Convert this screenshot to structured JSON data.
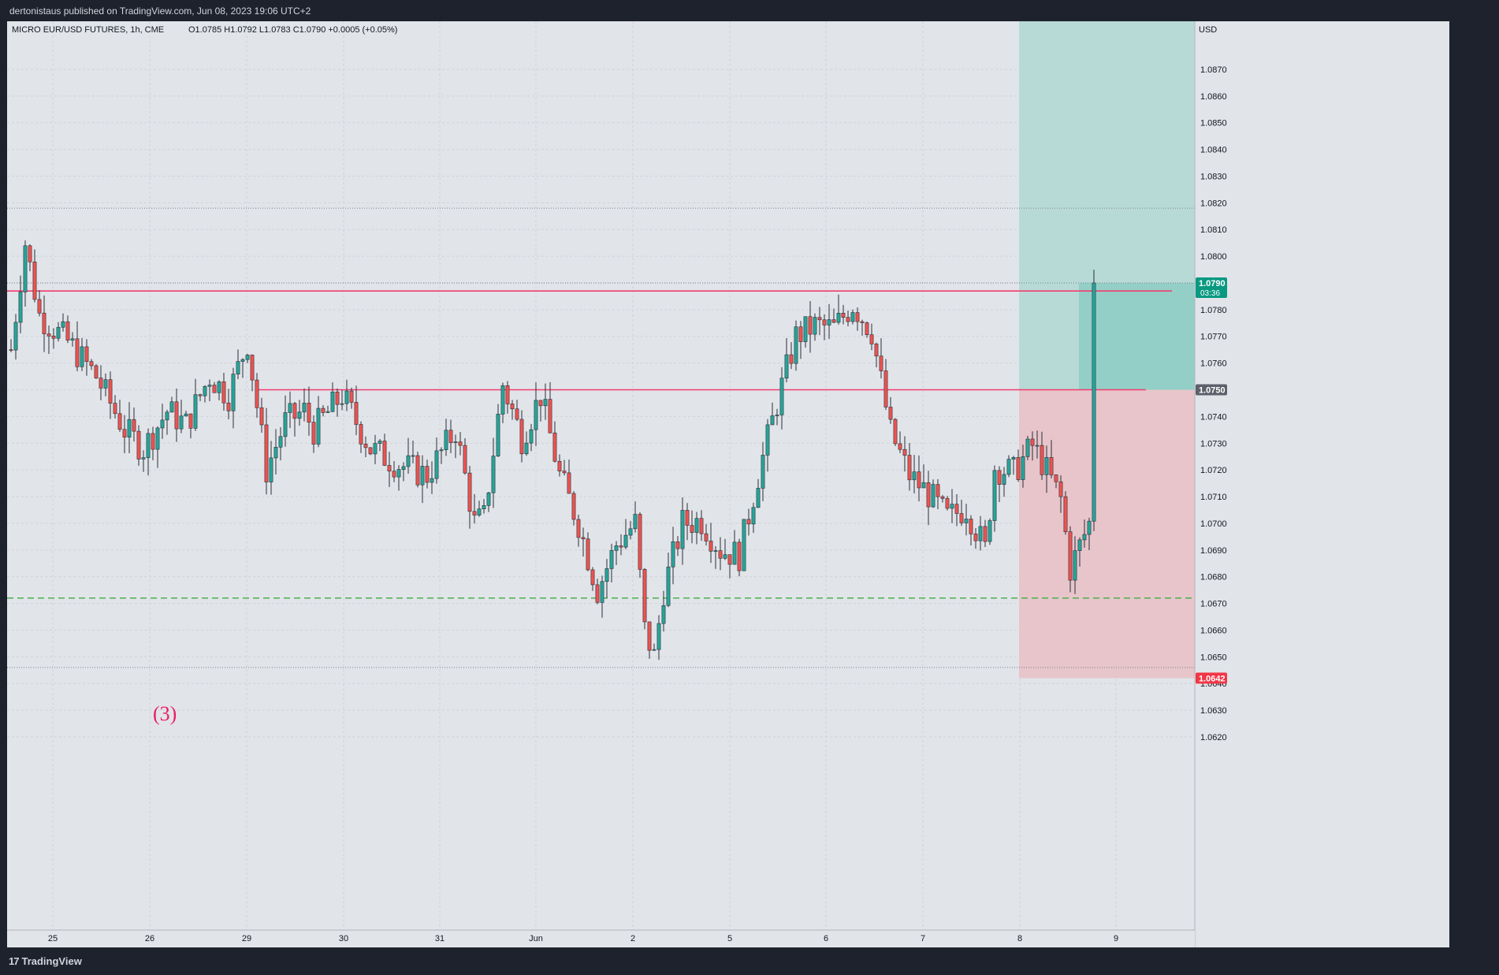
{
  "publisher_line": "dertonistaus published on TradingView.com, Jun 08, 2023 19:06 UTC+2",
  "footer": {
    "logo_mark": "17",
    "logo_text": "TradingView"
  },
  "colors": {
    "background": "#e1e4e8",
    "up": "#26a69a",
    "down": "#ef5350",
    "level_line": "#f23c6e",
    "support_line": "#4caf50",
    "profit_zone": "#b5d9d6",
    "loss_zone": "#e7c3c8",
    "annotation": "#e91e63"
  },
  "chart_data": {
    "type": "candlestick",
    "title": "MICRO EUR/USD FUTURES, 1h, CME",
    "ohlc_header": {
      "o_label": "O",
      "o": "1.0785",
      "h_label": "H",
      "h": "1.0792",
      "l_label": "L",
      "l": "1.0783",
      "c_label": "C",
      "c": "1.0790",
      "change": "+0.0005 (+0.05%)"
    },
    "currency": "USD",
    "ylim": [
      1.0612,
      1.0888
    ],
    "y_ticks": [
      "1.0870",
      "1.0860",
      "1.0850",
      "1.0840",
      "1.0830",
      "1.0820",
      "1.0810",
      "1.0800",
      "1.0790",
      "1.0780",
      "1.0770",
      "1.0760",
      "1.0750",
      "1.0740",
      "1.0730",
      "1.0720",
      "1.0710",
      "1.0700",
      "1.0690",
      "1.0680",
      "1.0670",
      "1.0660",
      "1.0650",
      "1.0640",
      "1.0630",
      "1.0620"
    ],
    "x_ticks": [
      "25",
      "26",
      "29",
      "30",
      "31",
      "Jun",
      "2",
      "5",
      "6",
      "7",
      "8",
      "9"
    ],
    "last_price": "1.0790",
    "countdown": "03:36",
    "horizontal_levels": [
      {
        "price": 1.0787,
        "style": "solid",
        "color": "#f23c6e"
      },
      {
        "price": 1.075,
        "style": "solid",
        "color": "#f23c6e"
      },
      {
        "price": 1.0672,
        "style": "dashed",
        "color": "#4caf50"
      }
    ],
    "dotted_levels": [
      1.0818,
      1.079,
      1.0646
    ],
    "position": {
      "type": "long",
      "entry": "1.0750",
      "stop": "1.0642",
      "target_top_offscreen": true
    },
    "annotation": "(3)",
    "candle_count": 230,
    "series": [
      {
        "name": "EUR/USD",
        "type": "ohlc",
        "first_open": 1.0765,
        "last_close": 1.079,
        "swing_points": [
          [
            0,
            1.0765
          ],
          [
            3,
            1.0805
          ],
          [
            6,
            1.0778
          ],
          [
            12,
            1.0768
          ],
          [
            18,
            1.0755
          ],
          [
            24,
            1.0735
          ],
          [
            28,
            1.0728
          ],
          [
            33,
            1.0742
          ],
          [
            37,
            1.0737
          ],
          [
            42,
            1.0755
          ],
          [
            46,
            1.0748
          ],
          [
            50,
            1.0768
          ],
          [
            54,
            1.072
          ],
          [
            58,
            1.0738
          ],
          [
            62,
            1.0742
          ],
          [
            64,
            1.0735
          ],
          [
            70,
            1.0748
          ],
          [
            76,
            1.0728
          ],
          [
            82,
            1.0722
          ],
          [
            88,
            1.0718
          ],
          [
            94,
            1.0735
          ],
          [
            98,
            1.07
          ],
          [
            100,
            1.0702
          ],
          [
            104,
            1.0752
          ],
          [
            108,
            1.0732
          ],
          [
            112,
            1.0748
          ],
          [
            116,
            1.0718
          ],
          [
            120,
            1.07
          ],
          [
            124,
            1.0675
          ],
          [
            128,
            1.0692
          ],
          [
            132,
            1.07
          ],
          [
            134,
            1.066
          ],
          [
            136,
            1.065
          ],
          [
            138,
            1.0675
          ],
          [
            142,
            1.07
          ],
          [
            146,
            1.0701
          ],
          [
            150,
            1.069
          ],
          [
            154,
            1.0688
          ],
          [
            158,
            1.0718
          ],
          [
            162,
            1.0745
          ],
          [
            166,
            1.077
          ],
          [
            170,
            1.0774
          ],
          [
            174,
            1.0773
          ],
          [
            178,
            1.0782
          ],
          [
            182,
            1.0772
          ],
          [
            186,
            1.0734
          ],
          [
            190,
            1.0718
          ],
          [
            194,
            1.0711
          ],
          [
            198,
            1.0702
          ],
          [
            202,
            1.0706
          ],
          [
            206,
            1.069
          ],
          [
            208,
            1.0721
          ],
          [
            212,
            1.0719
          ],
          [
            216,
            1.0729
          ],
          [
            218,
            1.0723
          ],
          [
            222,
            1.0709
          ],
          [
            224,
            1.0683
          ],
          [
            228,
            1.07
          ]
        ]
      }
    ]
  }
}
